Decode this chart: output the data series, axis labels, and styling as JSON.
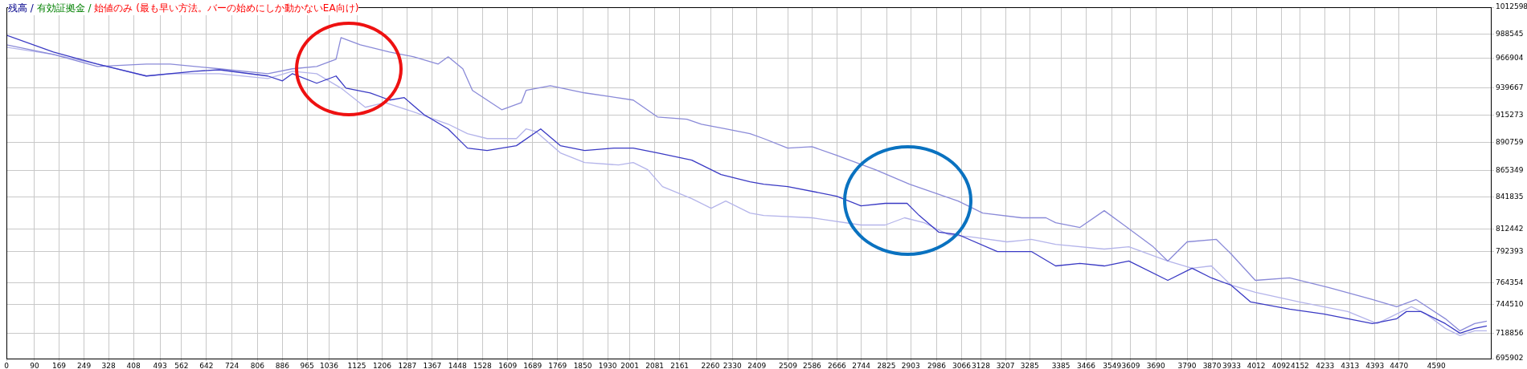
{
  "chart_data": {
    "type": "line",
    "annotations": [
      "残高 /",
      "有効証拠金 /",
      "始値のみ (最も早い方法。バーの始めにしか動かないEA向け)"
    ],
    "xlim": [
      0,
      4765
    ],
    "xticks": [
      0,
      90,
      169,
      249,
      328,
      408,
      493,
      562,
      642,
      724,
      806,
      886,
      965,
      1036,
      1125,
      1206,
      1287,
      1367,
      1448,
      1528,
      1609,
      1689,
      1769,
      1850,
      1930,
      2001,
      2081,
      2161,
      2260,
      2330,
      2409,
      2509,
      2586,
      2666,
      2744,
      2825,
      2903,
      2986,
      3066,
      3128,
      3207,
      3285,
      3385,
      3466,
      3549,
      3609,
      3690,
      3790,
      3870,
      3933,
      4012,
      4092,
      4152,
      4233,
      4313,
      4393,
      4470,
      4590
    ],
    "ylim": [
      695902,
      1012598
    ],
    "yticks": [
      695902,
      718856,
      744510,
      764354,
      792393,
      812442,
      841835,
      865349,
      890759,
      915273,
      939667,
      966904,
      988545,
      1012598
    ],
    "grid": true,
    "legend": false,
    "marker": "none",
    "line_style": "solid",
    "series": [
      {
        "color": "#3a3ac4",
        "x": [
          0,
          151,
          292,
          449,
          605,
          683,
          839,
          886,
          918,
          996,
          1058,
          1090,
          1168,
          1230,
          1277,
          1340,
          1418,
          1480,
          1543,
          1637,
          1715,
          1778,
          1856,
          1950,
          2012,
          2090,
          2200,
          2294,
          2387,
          2431,
          2508,
          2665,
          2743,
          2821,
          2891,
          2930,
          2993,
          3055,
          3181,
          3290,
          3368,
          3446,
          3524,
          3603,
          3728,
          3806,
          3868,
          3931,
          3994,
          4119,
          4228,
          4385,
          4463,
          4494,
          4541,
          4619,
          4666,
          4713,
          4752
        ],
        "values": [
          987400,
          972200,
          961400,
          950600,
          954900,
          956200,
          950600,
          946200,
          952700,
          944100,
          950600,
          939700,
          935400,
          928900,
          931100,
          915900,
          902900,
          885600,
          883400,
          887800,
          902900,
          887800,
          883400,
          885600,
          885600,
          881300,
          874800,
          861800,
          855200,
          853100,
          850900,
          842300,
          833600,
          835800,
          835800,
          824900,
          809800,
          807600,
          792400,
          792400,
          779400,
          781600,
          779400,
          783800,
          766400,
          777300,
          768600,
          762100,
          746900,
          740400,
          736100,
          727400,
          731800,
          738300,
          738300,
          727400,
          718800,
          723100,
          725300
        ]
      },
      {
        "color": "#8a8ad8",
        "x": [
          0,
          151,
          292,
          449,
          526,
          683,
          839,
          918,
          996,
          1058,
          1074,
          1136,
          1230,
          1308,
          1386,
          1418,
          1465,
          1496,
          1590,
          1653,
          1668,
          1746,
          1856,
          2012,
          2090,
          2184,
          2231,
          2309,
          2387,
          2431,
          2508,
          2586,
          2665,
          2790,
          2899,
          3055,
          3134,
          3259,
          3337,
          3368,
          3446,
          3524,
          3587,
          3681,
          3728,
          3790,
          3884,
          3931,
          4009,
          4119,
          4244,
          4385,
          4463,
          4525,
          4619,
          4666,
          4713,
          4752
        ],
        "values": [
          978700,
          970100,
          959200,
          961400,
          961400,
          957100,
          952700,
          957100,
          959200,
          965700,
          985200,
          978700,
          972200,
          967900,
          961400,
          967900,
          957100,
          937600,
          920200,
          926700,
          937600,
          941900,
          935400,
          928900,
          913700,
          911600,
          907200,
          902900,
          898600,
          894200,
          885600,
          886900,
          879100,
          866100,
          853100,
          837900,
          827100,
          822800,
          822800,
          818400,
          814100,
          829200,
          816300,
          796700,
          783800,
          801100,
          803300,
          790300,
          766400,
          768600,
          759900,
          749100,
          742600,
          749100,
          731800,
          720900,
          727400,
          729600
        ]
      },
      {
        "color": "#b4b4ea",
        "x": [
          0,
          151,
          292,
          449,
          526,
          683,
          839,
          918,
          996,
          1074,
          1152,
          1215,
          1308,
          1418,
          1480,
          1543,
          1637,
          1668,
          1699,
          1778,
          1856,
          1965,
          2012,
          2059,
          2106,
          2200,
          2262,
          2309,
          2387,
          2431,
          2586,
          2743,
          2821,
          2883,
          2946,
          3024,
          3102,
          3212,
          3290,
          3368,
          3524,
          3603,
          3728,
          3806,
          3868,
          3931,
          4009,
          4150,
          4306,
          4400,
          4510,
          4557,
          4619,
          4666,
          4713,
          4752
        ],
        "values": [
          976600,
          970100,
          961400,
          950600,
          952700,
          952700,
          948400,
          954900,
          952700,
          939700,
          922400,
          926700,
          918100,
          907200,
          898600,
          894200,
          894200,
          902900,
          900700,
          881300,
          872600,
          870400,
          872600,
          866100,
          850900,
          840100,
          831400,
          837900,
          827100,
          824900,
          822800,
          816300,
          816300,
          822800,
          818400,
          807600,
          805400,
          801100,
          803300,
          798900,
          794600,
          796700,
          783800,
          777300,
          779400,
          762100,
          755600,
          746900,
          738300,
          727400,
          742600,
          736100,
          723100,
          716600,
          720900,
          720900
        ]
      }
    ]
  }
}
